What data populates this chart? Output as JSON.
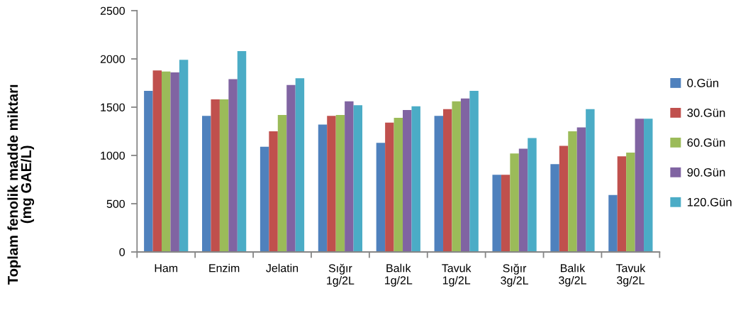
{
  "chart_data": {
    "type": "bar",
    "ylabel": "Toplam fenolik madde miktarı\n(mg GAE/L)",
    "categories": [
      "Ham",
      "Enzim",
      "Jelatin",
      "Sığır\n1g/2L",
      "Balık\n1g/2L",
      "Tavuk\n1g/2L",
      "Sığır\n3g/2L",
      "Balık\n3g/2L",
      "Tavuk\n3g/2L"
    ],
    "series": [
      {
        "name": "0.Gün",
        "color": "#4f81bd",
        "values": [
          1670,
          1410,
          1090,
          1320,
          1130,
          1410,
          800,
          910,
          590
        ]
      },
      {
        "name": "30.Gün",
        "color": "#c0504d",
        "values": [
          1880,
          1580,
          1250,
          1410,
          1340,
          1480,
          800,
          1100,
          990
        ]
      },
      {
        "name": "60.Gün",
        "color": "#9bbb59",
        "values": [
          1870,
          1580,
          1420,
          1420,
          1390,
          1560,
          1020,
          1250,
          1030
        ]
      },
      {
        "name": "90.Gün",
        "color": "#8064a2",
        "values": [
          1860,
          1790,
          1730,
          1560,
          1470,
          1590,
          1070,
          1290,
          1380
        ]
      },
      {
        "name": "120.Gün",
        "color": "#4bacc6",
        "values": [
          1990,
          2080,
          1800,
          1520,
          1510,
          1670,
          1180,
          1480,
          1380
        ]
      }
    ],
    "ylim": [
      0,
      2500
    ],
    "yticks": [
      0,
      500,
      1000,
      1500,
      2000,
      2500
    ],
    "grid": false,
    "legend": "right"
  }
}
